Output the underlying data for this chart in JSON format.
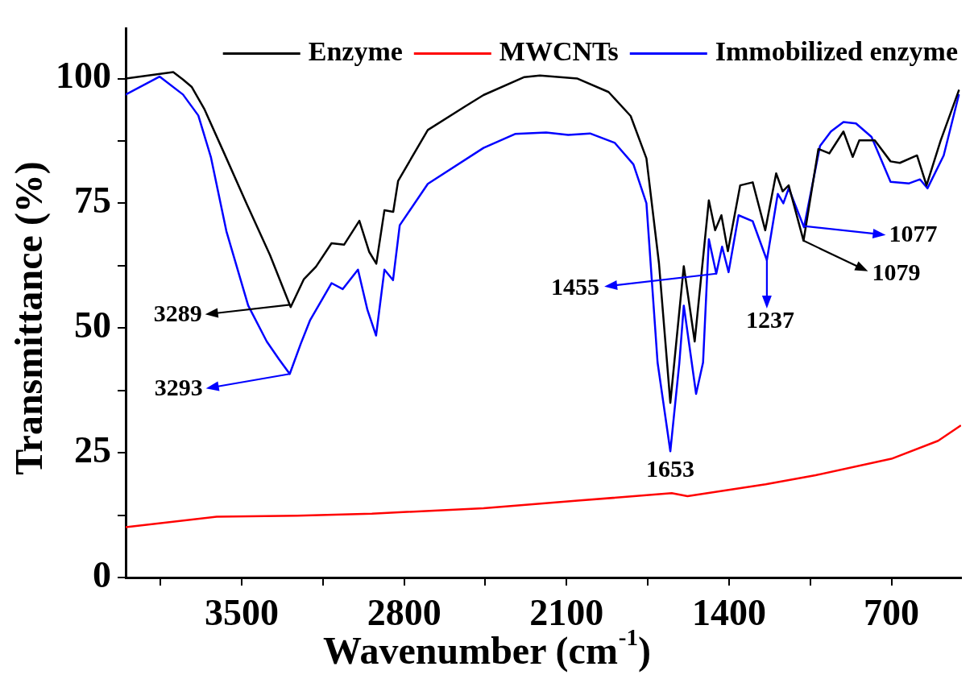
{
  "chart_data": {
    "type": "line",
    "xlabel": "Wavenumber (cm$^{-1}$)",
    "ylabel": "Transmittance (%)",
    "xlim": [
      4000,
      400
    ],
    "ylim": [
      0,
      110
    ],
    "xticks": [
      {
        "value": 3850,
        "label": null
      },
      3500,
      {
        "value": 3150,
        "label": null
      },
      2800,
      {
        "value": 2450,
        "label": null
      },
      2100,
      {
        "value": 1750,
        "label": null
      },
      1400,
      {
        "value": 1050,
        "label": null
      },
      700
    ],
    "yticks": [
      0,
      {
        "value": 12.5,
        "label": null
      },
      25,
      {
        "value": 37.5,
        "label": null
      },
      50,
      {
        "value": 62.5,
        "label": null
      },
      75,
      {
        "value": 87.5,
        "label": null
      },
      100
    ],
    "grid": false,
    "legend": "top",
    "series": [
      {
        "name": "Enzyme",
        "color": "#000000",
        "x": [
          4000,
          3795,
          3753,
          3715,
          3660,
          3580,
          3472,
          3378,
          3289,
          3232,
          3180,
          3113,
          3059,
          2993,
          2951,
          2920,
          2885,
          2847,
          2826,
          2698,
          2538,
          2458,
          2282,
          2215,
          2053,
          1919,
          1824,
          1756,
          1702,
          1653,
          1595,
          1548,
          1487,
          1460,
          1433,
          1405,
          1352,
          1298,
          1244,
          1197,
          1169,
          1143,
          1079,
          1015,
          968,
          907,
          867,
          839,
          772,
          704,
          664,
          590,
          549,
          488,
          410
        ],
        "values": [
          100,
          101.3,
          99.8,
          98.3,
          93.8,
          85.5,
          74.2,
          64.6,
          54.2,
          59.8,
          62.3,
          67,
          66.7,
          71.5,
          65.3,
          62.9,
          73.6,
          73.3,
          79.5,
          89.7,
          94.4,
          96.7,
          100.3,
          100.6,
          100,
          97.3,
          92.5,
          84,
          63,
          35,
          62.4,
          47.3,
          75.6,
          69.6,
          72.6,
          65.4,
          78.6,
          79.2,
          69.6,
          81,
          77.4,
          78.6,
          67.5,
          85.9,
          85,
          89.4,
          84.3,
          87.6,
          87.6,
          83.4,
          83.1,
          84.6,
          78.6,
          87.6,
          97.6
        ]
      },
      {
        "name": "MWCNTs",
        "color": "#ff0000",
        "x": [
          4000,
          3608,
          3260,
          2939,
          2458,
          2052,
          1647,
          1579,
          1242,
          1027,
          700,
          499,
          404
        ],
        "values": [
          10.1,
          12.2,
          12.4,
          12.8,
          13.9,
          15.4,
          16.9,
          16.3,
          18.7,
          20.5,
          23.8,
          27.4,
          30.4
        ]
      },
      {
        "name": "Immobilized enzyme",
        "color": "#0000ff",
        "x": [
          4000,
          3854,
          3753,
          3687,
          3633,
          3566,
          3472,
          3392,
          3340,
          3293,
          3246,
          3206,
          3113,
          3065,
          2999,
          2958,
          2921,
          2885,
          2848,
          2819,
          2698,
          2458,
          2322,
          2188,
          2093,
          1999,
          1892,
          1812,
          1756,
          1708,
          1653,
          1614,
          1595,
          1542,
          1512,
          1487,
          1455,
          1430,
          1402,
          1359,
          1298,
          1237,
          1190,
          1166,
          1143,
          1077,
          1008,
          961,
          907,
          853,
          786,
          704,
          624,
          577,
          545,
          475,
          410
        ],
        "values": [
          96.8,
          100.4,
          96.8,
          92.6,
          84.3,
          69.4,
          54.5,
          47.3,
          43.8,
          40.8,
          46.8,
          51.5,
          59,
          57.8,
          61.7,
          53.6,
          48.5,
          61.7,
          59.6,
          70.6,
          78.9,
          86.1,
          88.9,
          89.2,
          88.7,
          89,
          87.1,
          82.8,
          75,
          43.1,
          25.3,
          43.1,
          54.5,
          36.8,
          43.1,
          67.8,
          60.9,
          66.3,
          61.2,
          72.6,
          71.4,
          63.6,
          76.9,
          75,
          78,
          70.2,
          86.5,
          89.4,
          91.3,
          91,
          88.3,
          79.3,
          79,
          79.8,
          78,
          84.6,
          96.7
        ]
      }
    ],
    "annotations": [
      "3289",
      {
        "text": "3293",
        "x": 3293,
        "y": 40.8
      },
      {
        "text": "1653",
        "x": 1653,
        "y": 25.3
      },
      {
        "text": "1455",
        "x": 1455,
        "y": 60.9
      },
      {
        "text": "1237",
        "x": 1237,
        "y": 63.6
      },
      "1077",
      {
        "text": "1079",
        "x": 1079,
        "y": 67.5
      }
    ]
  }
}
